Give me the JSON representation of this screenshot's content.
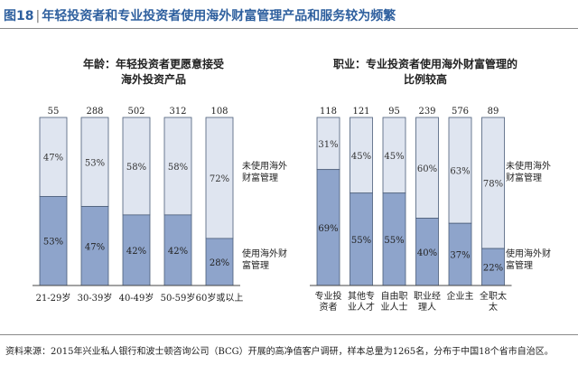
{
  "figure": {
    "label": "图18",
    "title": "年轻投资者和专业投资者使用海外财富管理产品和服务较为频繁"
  },
  "source": "资料来源：2015年兴业私人银行和波士顿咨询公司（BCG）开展的高净值客户调研，样本总量为1265名，分布于中国18个省市自治区。",
  "colors": {
    "title": "#2e5f9e",
    "used": "#8ea4cb",
    "not_used": "#dfe5f0",
    "border": "#4a5c78"
  },
  "chart_data": [
    {
      "type": "bar",
      "stacked": true,
      "title_lines": [
        "年龄：年轻投资者更愿意接受",
        "海外投资产品"
      ],
      "categories": [
        "21-29岁",
        "30-39岁",
        "40-49岁",
        "50-59岁",
        "60岁或以上"
      ],
      "sample_sizes": [
        "55",
        "288",
        "502",
        "312",
        "108"
      ],
      "ylim": [
        0,
        100
      ],
      "series": [
        {
          "name": "使用海外财富管理",
          "values": [
            53,
            47,
            42,
            42,
            28
          ]
        },
        {
          "name": "未使用海外财富管理",
          "values": [
            47,
            53,
            58,
            58,
            72
          ]
        }
      ]
    },
    {
      "type": "bar",
      "stacked": true,
      "title_lines": [
        "职业：专业投资者使用海外财富管理的",
        "比例较高"
      ],
      "categories": [
        "专业投资者",
        "其他专业人才",
        "自由职业人士",
        "职业经理人",
        "企业主",
        "全职太太"
      ],
      "sample_sizes": [
        "118",
        "121",
        "95",
        "239",
        "576",
        "89"
      ],
      "ylim": [
        0,
        100
      ],
      "series": [
        {
          "name": "使用海外财富管理",
          "values": [
            69,
            55,
            55,
            40,
            37,
            22
          ]
        },
        {
          "name": "未使用海外财富管理",
          "values": [
            31,
            45,
            45,
            60,
            63,
            78
          ]
        }
      ]
    }
  ]
}
